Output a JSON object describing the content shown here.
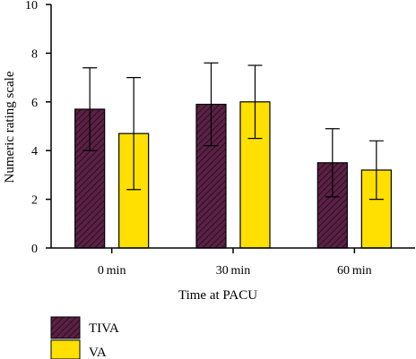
{
  "chart_data": {
    "type": "bar",
    "xlabel": "Time at PACU",
    "ylabel": "Numeric rating scale",
    "ylim": [
      0,
      10
    ],
    "yticks": [
      0,
      2,
      4,
      6,
      8,
      10
    ],
    "categories": [
      "0 min",
      "30 min",
      "60 min"
    ],
    "series": [
      {
        "name": "TIVA",
        "values": [
          5.7,
          5.9,
          3.5
        ],
        "error": [
          1.7,
          1.7,
          1.4
        ],
        "color": "#5a2145",
        "pattern": "diagonal-hatch"
      },
      {
        "name": "VA",
        "values": [
          4.7,
          6.0,
          3.2
        ],
        "error": [
          2.3,
          1.5,
          1.2
        ],
        "color": "#ffe000",
        "pattern": "solid"
      }
    ],
    "legend_position": "bottom-left",
    "grid": false
  }
}
